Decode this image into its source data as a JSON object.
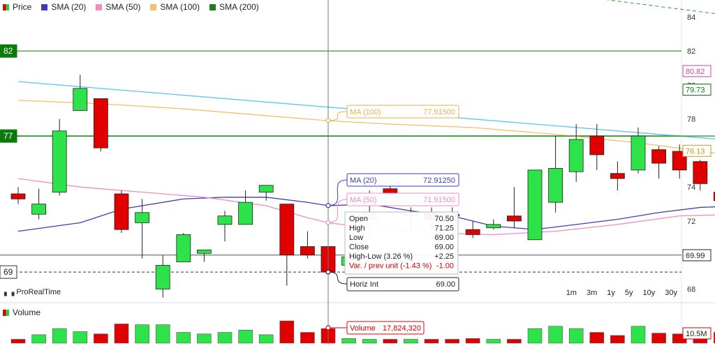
{
  "legend": [
    {
      "label": "Price",
      "type": "candle"
    },
    {
      "label": "SMA (20)",
      "color": "#3d3db8"
    },
    {
      "label": "SMA (50)",
      "color": "#f08cc0"
    },
    {
      "label": "SMA (100)",
      "color": "#f4c06a"
    },
    {
      "label": "SMA (200)",
      "color": "#1a7f1a"
    }
  ],
  "brand": "ProRealTime",
  "periods": [
    "1m",
    "3m",
    "1y",
    "5y",
    "10y",
    "30y"
  ],
  "volume_legend": "Volume",
  "chart_data": {
    "type": "candlestick",
    "y_ticks": [
      "84",
      "82",
      "80",
      "78",
      "76",
      "74",
      "72",
      "70",
      "68"
    ],
    "ylim": [
      67.2,
      85
    ],
    "candles": [
      {
        "open": 73.6,
        "high": 74.0,
        "low": 73.0,
        "close": 73.3
      },
      {
        "open": 72.4,
        "high": 73.9,
        "low": 72.1,
        "close": 73.0
      },
      {
        "open": 73.7,
        "high": 78.0,
        "low": 73.5,
        "close": 77.3
      },
      {
        "open": 78.5,
        "high": 80.6,
        "low": 78.5,
        "close": 79.8
      },
      {
        "open": 79.2,
        "high": 79.2,
        "low": 76.1,
        "close": 76.3
      },
      {
        "open": 73.6,
        "high": 73.8,
        "low": 71.3,
        "close": 71.5
      },
      {
        "open": 71.9,
        "high": 73.3,
        "low": 69.8,
        "close": 72.5
      },
      {
        "open": 68.0,
        "high": 70.0,
        "low": 67.5,
        "close": 69.4
      },
      {
        "open": 69.6,
        "high": 71.3,
        "low": 69.6,
        "close": 71.2
      },
      {
        "open": 70.1,
        "high": 70.3,
        "low": 69.6,
        "close": 70.3
      },
      {
        "open": 71.8,
        "high": 72.6,
        "low": 70.8,
        "close": 72.3
      },
      {
        "open": 71.8,
        "high": 73.8,
        "low": 71.8,
        "close": 73.1
      },
      {
        "open": 73.7,
        "high": 74.0,
        "low": 73.2,
        "close": 74.1
      },
      {
        "open": 73.0,
        "high": 73.0,
        "low": 68.2,
        "close": 70.0
      },
      {
        "open": 70.5,
        "high": 71.4,
        "low": 69.8,
        "close": 70.0
      },
      {
        "open": 70.5,
        "high": 71.25,
        "low": 69.0,
        "close": 69.0
      },
      {
        "open": 69.4,
        "high": 70.5,
        "low": 69.0,
        "close": 69.9
      },
      {
        "open": 72.1,
        "high": 73.8,
        "low": 71.0,
        "close": 72.5
      },
      {
        "open": 73.9,
        "high": 74.7,
        "low": 73.4,
        "close": 73.4
      },
      {
        "open": 72.4,
        "high": 72.8,
        "low": 71.5,
        "close": 72.4
      },
      {
        "open": 72.5,
        "high": 72.8,
        "low": 71.6,
        "close": 72.1
      },
      {
        "open": 72.4,
        "high": 72.8,
        "low": 71.8,
        "close": 72.3
      },
      {
        "open": 71.5,
        "high": 72.0,
        "low": 71.0,
        "close": 71.2
      },
      {
        "open": 71.6,
        "high": 72.1,
        "low": 71.5,
        "close": 71.8
      },
      {
        "open": 72.3,
        "high": 74.0,
        "low": 71.6,
        "close": 72.0
      },
      {
        "open": 70.9,
        "high": 75.0,
        "low": 70.9,
        "close": 75.0
      },
      {
        "open": 73.1,
        "high": 77.0,
        "low": 72.5,
        "close": 75.1
      },
      {
        "open": 74.9,
        "high": 77.7,
        "low": 74.3,
        "close": 76.8
      },
      {
        "open": 77.0,
        "high": 77.7,
        "low": 75.0,
        "close": 75.9
      },
      {
        "open": 74.8,
        "high": 75.5,
        "low": 73.8,
        "close": 74.5
      },
      {
        "open": 75.0,
        "high": 77.5,
        "low": 74.8,
        "close": 77.0
      },
      {
        "open": 76.2,
        "high": 76.4,
        "low": 74.5,
        "close": 75.4
      },
      {
        "open": 76.1,
        "high": 76.5,
        "low": 74.5,
        "close": 75.0
      },
      {
        "open": 75.5,
        "high": 75.6,
        "low": 73.8,
        "close": 74.2
      },
      {
        "open": 73.7,
        "high": 74.9,
        "low": 73.0,
        "close": 73.2
      }
    ],
    "volume": [
      0.25,
      0.55,
      0.95,
      0.75,
      0.6,
      1.25,
      1.2,
      1.2,
      0.7,
      0.6,
      0.7,
      0.85,
      0.55,
      1.45,
      0.7,
      0.95,
      0.3,
      0.25,
      0.25,
      0.25,
      0.25,
      0.25,
      0.3,
      0.25,
      0.25,
      0.95,
      1.1,
      0.95,
      0.7,
      0.5,
      1.1,
      0.65,
      0.6,
      0.65,
      0.7
    ],
    "series": [
      {
        "name": "SMA (20)",
        "color": "#3d3db8",
        "x": [
          0,
          3,
          5,
          8,
          10,
          12,
          14,
          15,
          17,
          19,
          21,
          23,
          25,
          27,
          29,
          31,
          33,
          35
        ],
        "y": [
          71.4,
          71.9,
          72.7,
          73.3,
          73.4,
          73.4,
          73.1,
          72.9,
          73.0,
          72.6,
          72.3,
          71.7,
          71.5,
          71.8,
          72.1,
          72.5,
          72.8,
          72.9
        ]
      },
      {
        "name": "SMA (50)",
        "color": "#f08cc0",
        "x": [
          0,
          3,
          6,
          9,
          12,
          14,
          15,
          17,
          20,
          23,
          26,
          29,
          32,
          35
        ],
        "y": [
          74.5,
          74.0,
          73.7,
          73.4,
          72.9,
          72.2,
          71.9,
          71.6,
          71.3,
          71.2,
          71.4,
          71.8,
          72.3,
          72.4
        ]
      },
      {
        "name": "SMA (100)",
        "color": "#f4c06a",
        "x": [
          0,
          4,
          8,
          12,
          15,
          18,
          22,
          26,
          30,
          35
        ],
        "y": [
          79.1,
          78.9,
          78.6,
          78.2,
          77.9,
          77.7,
          77.5,
          77.1,
          76.6,
          75.8
        ]
      },
      {
        "name": "",
        "color": "#5bc8e8",
        "x": [
          0,
          6,
          12,
          18,
          24,
          30,
          35
        ],
        "y": [
          80.2,
          79.6,
          79.0,
          78.4,
          77.8,
          77.2,
          76.7
        ]
      },
      {
        "name": "SMA (200)",
        "color": "#2e9a2e",
        "x": [
          0,
          35
        ],
        "y": [
          77.0,
          77.0
        ]
      }
    ],
    "trend_line": {
      "color": "#2e9a2e",
      "x": [
        26,
        35
      ],
      "y": [
        85.4,
        84.0
      ]
    },
    "horizontal_levels": [
      {
        "value": 82,
        "label": "82",
        "color": "#0a7a0a"
      },
      {
        "value": 77,
        "label": "77",
        "color": "#0a7a0a"
      },
      {
        "value": 70,
        "color": "#555555"
      },
      {
        "value": 69,
        "label": "69",
        "color": "#333333",
        "dashed": true
      }
    ],
    "right_labels": [
      {
        "value": 80.82,
        "text": "80.82",
        "color": "#d0459a"
      },
      {
        "value": 79.73,
        "text": "79.73",
        "color": "#0a7a0a"
      },
      {
        "value": 76.13,
        "text": "76.13",
        "color": "#c89a1a"
      },
      {
        "value": 69.99,
        "text": "69.99",
        "color": "#222222"
      }
    ],
    "volume_label": "10.5M",
    "crosshair_index": 15,
    "tooltips": [
      {
        "name": "MA (100)",
        "value": "77.91500",
        "at": 77.915,
        "color": "#e8b04a"
      },
      {
        "name": "MA (20)",
        "value": "72.91250",
        "at": 72.9125,
        "color": "#3d3db8"
      },
      {
        "name": "MA (50)",
        "value": "71.91500",
        "at": 71.915,
        "color": "#f08cc0"
      }
    ],
    "ohlc_tooltip": [
      {
        "label": "Open",
        "value": "70.50",
        "color": "#222222"
      },
      {
        "label": "High",
        "value": "71.25",
        "color": "#222222"
      },
      {
        "label": "Low",
        "value": "69.00",
        "color": "#222222"
      },
      {
        "label": "Close",
        "value": "69.00",
        "color": "#222222"
      },
      {
        "label": "High-Low (3.26 %)",
        "value": "+2.25",
        "color": "#222222"
      },
      {
        "label": "Var. / prev unit (-1.43 %)",
        "value": "-1.00",
        "color": "#d00000"
      }
    ],
    "horiz_tooltip": {
      "label": "Horiz Int",
      "value": "69.00",
      "at": 69.0
    },
    "volume_tooltip": {
      "label": "Volume",
      "value": "17,824,320"
    }
  }
}
